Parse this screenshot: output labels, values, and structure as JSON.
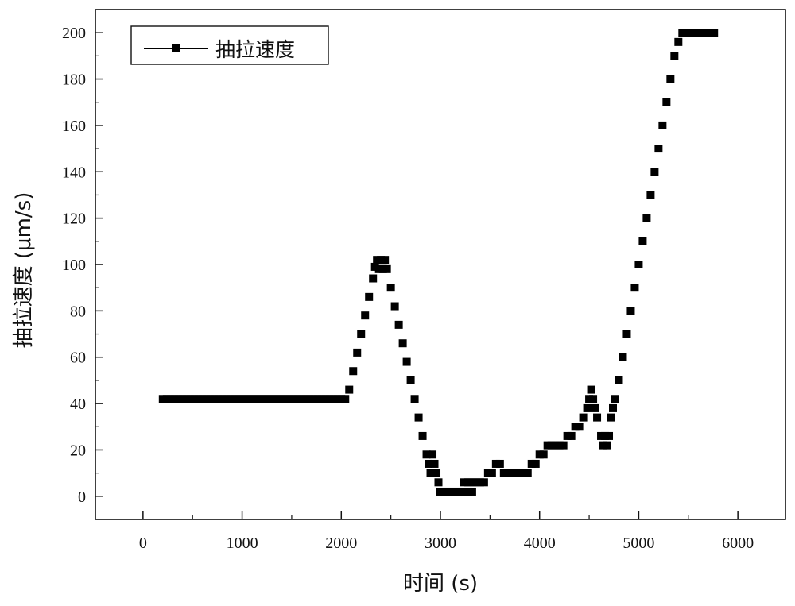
{
  "chart_data": {
    "type": "scatter",
    "xlabel": "时间 (s)",
    "ylabel": "抽拉速度 (μm/s)",
    "xlim": [
      -480,
      6480
    ],
    "ylim": [
      -10,
      210
    ],
    "x_ticks": [
      0,
      1000,
      2000,
      3000,
      4000,
      5000,
      6000
    ],
    "y_ticks": [
      0,
      20,
      40,
      60,
      80,
      100,
      120,
      140,
      160,
      180,
      200
    ],
    "grid": false,
    "legend_position": "top-left",
    "series": [
      {
        "name": "抽拉速度",
        "color": "#000000",
        "marker": "square",
        "points": [
          [
            200,
            42
          ],
          [
            240,
            42
          ],
          [
            280,
            42
          ],
          [
            320,
            42
          ],
          [
            360,
            42
          ],
          [
            400,
            42
          ],
          [
            440,
            42
          ],
          [
            480,
            42
          ],
          [
            520,
            42
          ],
          [
            560,
            42
          ],
          [
            600,
            42
          ],
          [
            640,
            42
          ],
          [
            680,
            42
          ],
          [
            720,
            42
          ],
          [
            760,
            42
          ],
          [
            800,
            42
          ],
          [
            840,
            42
          ],
          [
            880,
            42
          ],
          [
            920,
            42
          ],
          [
            960,
            42
          ],
          [
            1000,
            42
          ],
          [
            1040,
            42
          ],
          [
            1080,
            42
          ],
          [
            1120,
            42
          ],
          [
            1160,
            42
          ],
          [
            1200,
            42
          ],
          [
            1240,
            42
          ],
          [
            1280,
            42
          ],
          [
            1320,
            42
          ],
          [
            1360,
            42
          ],
          [
            1400,
            42
          ],
          [
            1440,
            42
          ],
          [
            1480,
            42
          ],
          [
            1520,
            42
          ],
          [
            1560,
            42
          ],
          [
            1600,
            42
          ],
          [
            1640,
            42
          ],
          [
            1680,
            42
          ],
          [
            1720,
            42
          ],
          [
            1760,
            42
          ],
          [
            1800,
            42
          ],
          [
            1840,
            42
          ],
          [
            1880,
            42
          ],
          [
            1920,
            42
          ],
          [
            1960,
            42
          ],
          [
            2000,
            42
          ],
          [
            2040,
            42
          ],
          [
            2080,
            46
          ],
          [
            2120,
            54
          ],
          [
            2160,
            62
          ],
          [
            2200,
            70
          ],
          [
            2240,
            78
          ],
          [
            2280,
            86
          ],
          [
            2320,
            94
          ],
          [
            2340,
            99
          ],
          [
            2360,
            102
          ],
          [
            2400,
            102
          ],
          [
            2440,
            102
          ],
          [
            2380,
            98
          ],
          [
            2420,
            98
          ],
          [
            2460,
            98
          ],
          [
            2500,
            90
          ],
          [
            2540,
            82
          ],
          [
            2580,
            74
          ],
          [
            2620,
            66
          ],
          [
            2660,
            58
          ],
          [
            2700,
            50
          ],
          [
            2740,
            42
          ],
          [
            2780,
            34
          ],
          [
            2820,
            26
          ],
          [
            2860,
            18
          ],
          [
            2880,
            14
          ],
          [
            2900,
            10
          ],
          [
            2920,
            18
          ],
          [
            2940,
            14
          ],
          [
            2960,
            10
          ],
          [
            2980,
            6
          ],
          [
            3000,
            2
          ],
          [
            3040,
            2
          ],
          [
            3080,
            2
          ],
          [
            3120,
            2
          ],
          [
            3160,
            2
          ],
          [
            3200,
            2
          ],
          [
            3240,
            2
          ],
          [
            3280,
            2
          ],
          [
            3320,
            2
          ],
          [
            3240,
            6
          ],
          [
            3280,
            6
          ],
          [
            3320,
            6
          ],
          [
            3360,
            6
          ],
          [
            3400,
            6
          ],
          [
            3440,
            6
          ],
          [
            3480,
            10
          ],
          [
            3520,
            10
          ],
          [
            3560,
            14
          ],
          [
            3600,
            14
          ],
          [
            3640,
            10
          ],
          [
            3680,
            10
          ],
          [
            3720,
            10
          ],
          [
            3760,
            10
          ],
          [
            3800,
            10
          ],
          [
            3840,
            10
          ],
          [
            3880,
            10
          ],
          [
            3920,
            14
          ],
          [
            3960,
            14
          ],
          [
            4000,
            18
          ],
          [
            4040,
            18
          ],
          [
            4080,
            22
          ],
          [
            4120,
            22
          ],
          [
            4160,
            22
          ],
          [
            4200,
            22
          ],
          [
            4240,
            22
          ],
          [
            4280,
            26
          ],
          [
            4320,
            26
          ],
          [
            4360,
            30
          ],
          [
            4400,
            30
          ],
          [
            4440,
            34
          ],
          [
            4480,
            38
          ],
          [
            4500,
            42
          ],
          [
            4520,
            46
          ],
          [
            4540,
            42
          ],
          [
            4560,
            38
          ],
          [
            4580,
            34
          ],
          [
            4620,
            26
          ],
          [
            4640,
            22
          ],
          [
            4660,
            26
          ],
          [
            4680,
            22
          ],
          [
            4700,
            26
          ],
          [
            4720,
            34
          ],
          [
            4740,
            38
          ],
          [
            4760,
            42
          ],
          [
            4800,
            50
          ],
          [
            4840,
            60
          ],
          [
            4880,
            70
          ],
          [
            4920,
            80
          ],
          [
            4960,
            90
          ],
          [
            5000,
            100
          ],
          [
            5040,
            110
          ],
          [
            5080,
            120
          ],
          [
            5120,
            130
          ],
          [
            5160,
            140
          ],
          [
            5200,
            150
          ],
          [
            5240,
            160
          ],
          [
            5280,
            170
          ],
          [
            5320,
            180
          ],
          [
            5360,
            190
          ],
          [
            5400,
            196
          ],
          [
            5440,
            200
          ],
          [
            5480,
            200
          ],
          [
            5520,
            200
          ],
          [
            5560,
            200
          ],
          [
            5600,
            200
          ],
          [
            5640,
            200
          ],
          [
            5680,
            200
          ],
          [
            5720,
            200
          ],
          [
            5760,
            200
          ]
        ]
      }
    ]
  }
}
